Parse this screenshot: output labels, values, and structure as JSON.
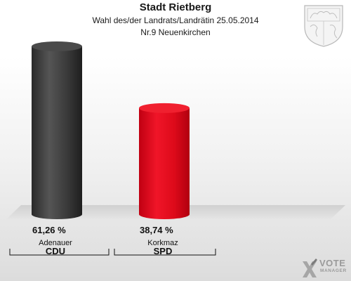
{
  "header": {
    "title": "Stadt Rietberg",
    "subtitle": "Wahl des/der Landrats/Landrätin 25.05.2014",
    "subtitle2": "Nr.9 Neuenkirchen"
  },
  "brand": {
    "vote": "VOTE",
    "manager": "MANAGER"
  },
  "colors": {
    "cdu": "#3a3a3a",
    "spd": "#e00b1b",
    "floor": "#d8d8d8"
  },
  "icons": {
    "crest": "coat-of-arms-icon",
    "brand": "vote-manager-logo-icon"
  },
  "chart_data": {
    "type": "bar",
    "categories": [
      "CDU",
      "SPD"
    ],
    "candidates": [
      "Adenauer",
      "Korkmaz"
    ],
    "values": [
      61.26,
      38.74
    ],
    "value_labels": [
      "61,26 %",
      "38,74 %"
    ],
    "ylim": [
      0,
      65
    ],
    "title": "Stadt Rietberg",
    "xlabel": "",
    "ylabel": ""
  }
}
